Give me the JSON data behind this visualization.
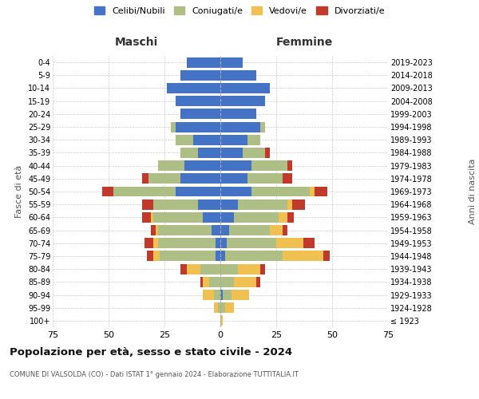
{
  "age_groups": [
    "100+",
    "95-99",
    "90-94",
    "85-89",
    "80-84",
    "75-79",
    "70-74",
    "65-69",
    "60-64",
    "55-59",
    "50-54",
    "45-49",
    "40-44",
    "35-39",
    "30-34",
    "25-29",
    "20-24",
    "15-19",
    "10-14",
    "5-9",
    "0-4"
  ],
  "birth_years": [
    "≤ 1923",
    "1924-1928",
    "1929-1933",
    "1934-1938",
    "1939-1943",
    "1944-1948",
    "1949-1953",
    "1954-1958",
    "1959-1963",
    "1964-1968",
    "1969-1973",
    "1974-1978",
    "1979-1983",
    "1984-1988",
    "1989-1993",
    "1994-1998",
    "1999-2003",
    "2004-2008",
    "2009-2013",
    "2014-2018",
    "2019-2023"
  ],
  "colors": {
    "celibi": "#4472C4",
    "coniugati": "#ADBF84",
    "vedovi": "#F0C050",
    "divorziati": "#C0392B"
  },
  "males": {
    "celibi": [
      0,
      0,
      0,
      0,
      0,
      2,
      2,
      4,
      8,
      10,
      20,
      18,
      16,
      10,
      12,
      20,
      18,
      20,
      24,
      18,
      15
    ],
    "coniugati": [
      0,
      1,
      3,
      5,
      9,
      25,
      26,
      24,
      22,
      20,
      28,
      14,
      12,
      8,
      8,
      2,
      0,
      0,
      0,
      0,
      0
    ],
    "vedovi": [
      0,
      2,
      5,
      3,
      6,
      3,
      2,
      1,
      1,
      0,
      0,
      0,
      0,
      0,
      0,
      0,
      0,
      0,
      0,
      0,
      0
    ],
    "divorziati": [
      0,
      0,
      0,
      1,
      3,
      3,
      4,
      2,
      4,
      5,
      5,
      3,
      0,
      0,
      0,
      0,
      0,
      0,
      0,
      0,
      0
    ]
  },
  "females": {
    "celibi": [
      0,
      0,
      1,
      0,
      0,
      2,
      3,
      4,
      6,
      8,
      14,
      12,
      14,
      10,
      12,
      18,
      16,
      20,
      22,
      16,
      10
    ],
    "coniugati": [
      0,
      2,
      4,
      6,
      8,
      26,
      22,
      18,
      20,
      22,
      26,
      16,
      16,
      10,
      6,
      2,
      0,
      0,
      0,
      0,
      0
    ],
    "vedovi": [
      1,
      4,
      8,
      10,
      10,
      18,
      12,
      6,
      4,
      2,
      2,
      0,
      0,
      0,
      0,
      0,
      0,
      0,
      0,
      0,
      0
    ],
    "divorziati": [
      0,
      0,
      0,
      2,
      2,
      3,
      5,
      2,
      3,
      6,
      6,
      4,
      2,
      2,
      0,
      0,
      0,
      0,
      0,
      0,
      0
    ]
  },
  "title": "Popolazione per età, sesso e stato civile - 2024",
  "subtitle": "COMUNE DI VALSOLDA (CO) - Dati ISTAT 1° gennaio 2024 - Elaborazione TUTTITALIA.IT",
  "xlabel_left": "Maschi",
  "xlabel_right": "Femmine",
  "ylabel_left": "Fasce di età",
  "ylabel_right": "Anni di nascita",
  "xlim": 75,
  "legend_labels": [
    "Celibi/Nubili",
    "Coniugati/e",
    "Vedovi/e",
    "Divorziati/e"
  ],
  "background_color": "#FFFFFF",
  "grid_color": "#CCCCCC"
}
